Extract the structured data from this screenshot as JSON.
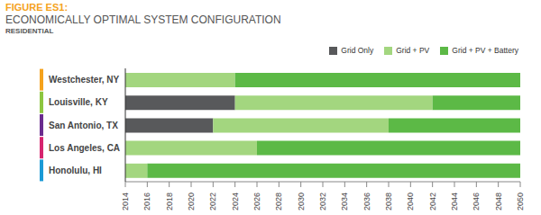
{
  "chart_data": {
    "type": "bar",
    "orientation": "horizontal",
    "figure_label": "FIGURE ES1:",
    "title": "ECONOMICALLY OPTIMAL SYSTEM CONFIGURATION",
    "subtitle": "RESIDENTIAL",
    "categories": [
      "Westchester, NY",
      "Louisville, KY",
      "San Antonio, TX",
      "Los Angeles, CA",
      "Honolulu, HI"
    ],
    "series": [
      {
        "name": "Grid Only",
        "color": "#58595b",
        "values": [
          null,
          [
            2014,
            2024
          ],
          [
            2014,
            2022
          ],
          null,
          null
        ]
      },
      {
        "name": "Grid + PV",
        "color": "#a3d67f",
        "values": [
          [
            2014,
            2024
          ],
          [
            2024,
            2042
          ],
          [
            2022,
            2038
          ],
          [
            2014,
            2026
          ],
          [
            2014,
            2016
          ]
        ]
      },
      {
        "name": "Grid + PV + Battery",
        "color": "#5cb946",
        "values": [
          [
            2024,
            2050
          ],
          [
            2042,
            2050
          ],
          [
            2038,
            2050
          ],
          [
            2026,
            2050
          ],
          [
            2016,
            2050
          ]
        ]
      }
    ],
    "xlim": [
      2014,
      2050
    ],
    "xticks": [
      2014,
      2016,
      2018,
      2020,
      2022,
      2024,
      2026,
      2028,
      2030,
      2032,
      2034,
      2036,
      2038,
      2040,
      2042,
      2044,
      2046,
      2048,
      2050
    ],
    "grid": false,
    "legend": "upper right"
  }
}
